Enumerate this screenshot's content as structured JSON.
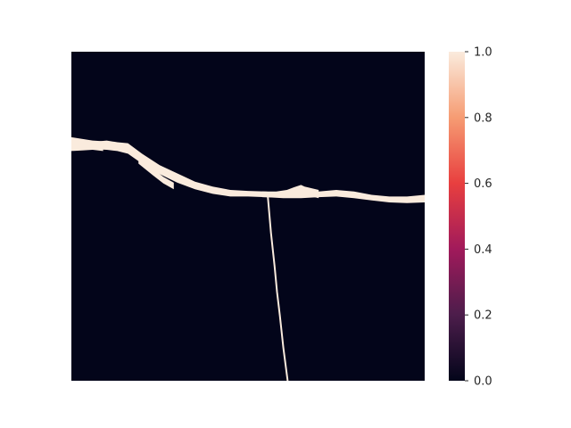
{
  "chart_data": {
    "type": "heatmap",
    "title": "",
    "xlabel": "",
    "ylabel": "",
    "value_range": [
      0.0,
      1.0
    ],
    "colorbar": {
      "ticks": [
        0.0,
        0.2,
        0.4,
        0.6,
        0.8,
        1.0
      ],
      "tick_labels": [
        "0.0",
        "0.2",
        "0.4",
        "0.6",
        "0.8",
        "1.0"
      ],
      "colormap": "rocket",
      "colormap_stops": [
        "#03051a",
        "#4c1d4b",
        "#a11a5b",
        "#e83f3f",
        "#f69c73",
        "#faebdd"
      ]
    },
    "background_value": 0.0,
    "foreground_value": 1.0,
    "axes_visible": false,
    "grid": false,
    "features": [
      {
        "name": "upper band",
        "value": 1.0,
        "upper": [
          [
            0,
            0.265
          ],
          [
            2,
            0.268
          ],
          [
            4,
            0.27
          ],
          [
            6,
            0.275
          ],
          [
            8,
            0.272
          ],
          [
            10,
            0.27
          ],
          [
            13,
            0.275
          ],
          [
            16,
            0.278
          ],
          [
            20,
            0.31
          ],
          [
            25,
            0.345
          ],
          [
            30,
            0.37
          ],
          [
            35,
            0.395
          ],
          [
            40,
            0.41
          ],
          [
            45,
            0.42
          ],
          [
            50,
            0.423
          ],
          [
            55,
            0.425
          ],
          [
            60,
            0.43
          ],
          [
            65,
            0.43
          ],
          [
            70,
            0.425
          ],
          [
            75,
            0.42
          ],
          [
            80,
            0.425
          ],
          [
            85,
            0.435
          ],
          [
            90,
            0.44
          ],
          [
            95,
            0.44
          ],
          [
            100,
            0.435
          ]
        ],
        "lower": [
          [
            0,
            0.288
          ],
          [
            2,
            0.29
          ],
          [
            4,
            0.292
          ],
          [
            6,
            0.295
          ],
          [
            8,
            0.297
          ],
          [
            10,
            0.298
          ],
          [
            13,
            0.302
          ],
          [
            16,
            0.31
          ],
          [
            20,
            0.34
          ],
          [
            25,
            0.372
          ],
          [
            30,
            0.398
          ],
          [
            35,
            0.418
          ],
          [
            40,
            0.432
          ],
          [
            45,
            0.44
          ],
          [
            50,
            0.44
          ],
          [
            55,
            0.442
          ],
          [
            60,
            0.445
          ],
          [
            65,
            0.445
          ],
          [
            70,
            0.442
          ],
          [
            75,
            0.44
          ],
          [
            80,
            0.445
          ],
          [
            85,
            0.452
          ],
          [
            90,
            0.458
          ],
          [
            95,
            0.46
          ],
          [
            100,
            0.458
          ]
        ]
      },
      {
        "name": "left fragments",
        "value": 1.0,
        "upper": [
          [
            0,
            0.26
          ],
          [
            3,
            0.265
          ],
          [
            6,
            0.27
          ],
          [
            9,
            0.272
          ]
        ],
        "lower": [
          [
            0,
            0.302
          ],
          [
            3,
            0.3
          ],
          [
            6,
            0.298
          ],
          [
            9,
            0.302
          ]
        ]
      },
      {
        "name": "mid bump",
        "value": 1.0,
        "upper": [
          [
            54,
            0.425
          ],
          [
            58,
            0.425
          ],
          [
            61,
            0.42
          ],
          [
            63,
            0.412
          ],
          [
            65,
            0.405
          ],
          [
            66,
            0.41
          ],
          [
            68,
            0.415
          ],
          [
            70,
            0.42
          ]
        ],
        "lower": [
          [
            54,
            0.442
          ],
          [
            58,
            0.443
          ],
          [
            61,
            0.44
          ],
          [
            63,
            0.435
          ],
          [
            65,
            0.433
          ],
          [
            66,
            0.434
          ],
          [
            68,
            0.44
          ],
          [
            70,
            0.445
          ]
        ]
      },
      {
        "name": "diagonal streak",
        "value": 1.0,
        "upper": [
          [
            19,
            0.32
          ],
          [
            23,
            0.355
          ],
          [
            26,
            0.38
          ],
          [
            29,
            0.398
          ]
        ],
        "lower": [
          [
            19,
            0.34
          ],
          [
            23,
            0.375
          ],
          [
            26,
            0.4
          ],
          [
            29,
            0.418
          ]
        ]
      },
      {
        "name": "vertical crack",
        "value": 1.0,
        "path": [
          [
            55.6,
            0.44
          ],
          [
            56.5,
            0.55
          ],
          [
            57.5,
            0.65
          ],
          [
            58.2,
            0.73
          ],
          [
            59,
            0.8
          ],
          [
            60,
            0.9
          ],
          [
            61.2,
            1.0
          ]
        ]
      }
    ]
  }
}
